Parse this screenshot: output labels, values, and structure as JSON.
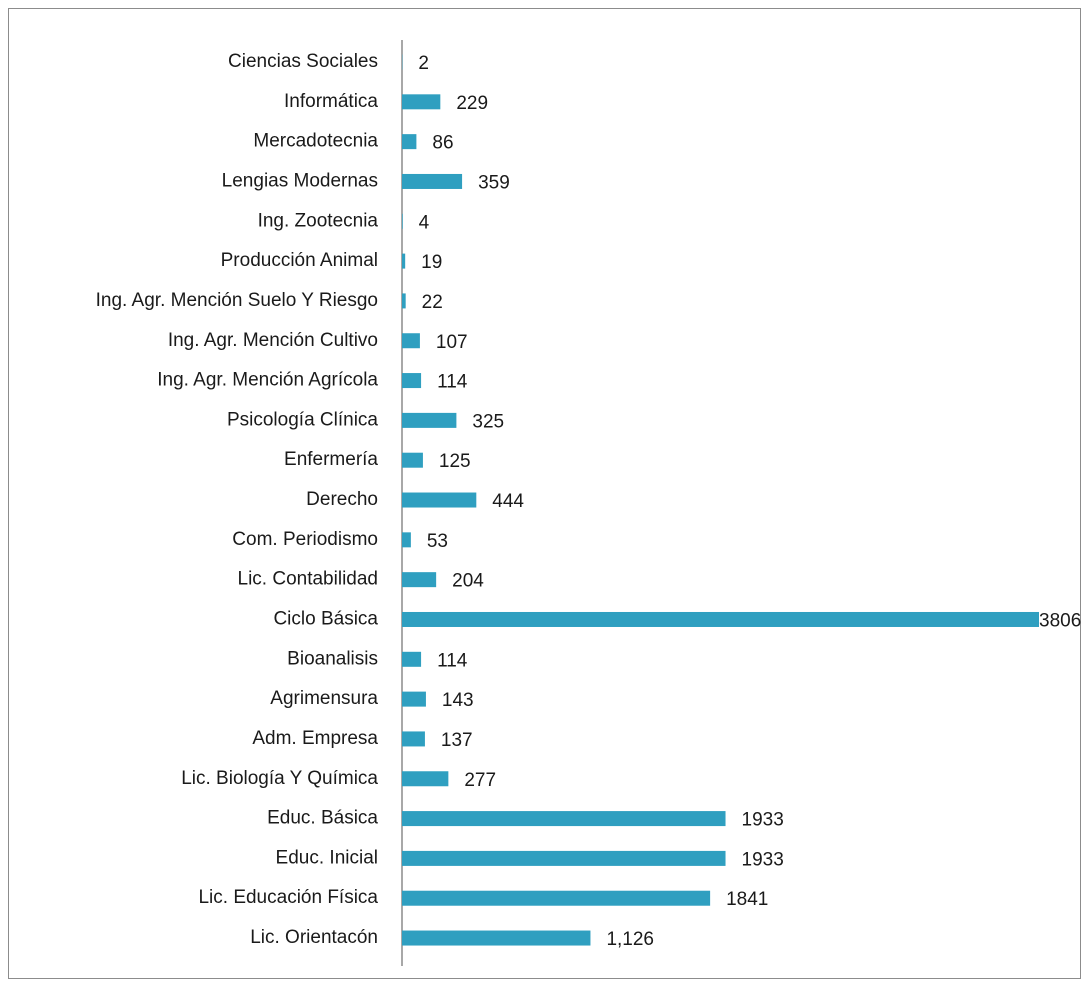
{
  "chart_data": {
    "type": "barh",
    "categories": [
      "Ciencias Sociales",
      "Informática",
      "Mercadotecnia",
      "Lengias Modernas",
      "Ing. Zootecnia",
      "Producción Animal",
      "Ing. Agr. Mención Suelo Y Riesgo",
      "Ing. Agr. Mención Cultivo",
      "Ing. Agr. Mención Agrícola",
      "Psicología Clínica",
      "Enfermería",
      "Derecho",
      "Com. Periodismo",
      "Lic. Contabilidad",
      "Ciclo Básica",
      "Bioanalisis",
      "Agrimensura",
      "Adm. Empresa",
      "Lic. Biología Y Química",
      "Educ. Básica",
      "Educ. Inicial",
      "Lic. Educación Física",
      "Lic. Orientacón"
    ],
    "values": [
      2,
      229,
      86,
      359,
      4,
      19,
      22,
      107,
      114,
      325,
      125,
      444,
      53,
      204,
      3806,
      114,
      143,
      137,
      277,
      1933,
      1933,
      1841,
      1126
    ],
    "value_labels": [
      "2",
      "229",
      "86",
      "359",
      "4",
      "19",
      "22",
      "107",
      "114",
      "325",
      "125",
      "444",
      "53",
      "204",
      "3806",
      "114",
      "143",
      "137",
      "277",
      "1933",
      "1933",
      "1841",
      "1,126"
    ],
    "color": "#2f9fc0"
  }
}
